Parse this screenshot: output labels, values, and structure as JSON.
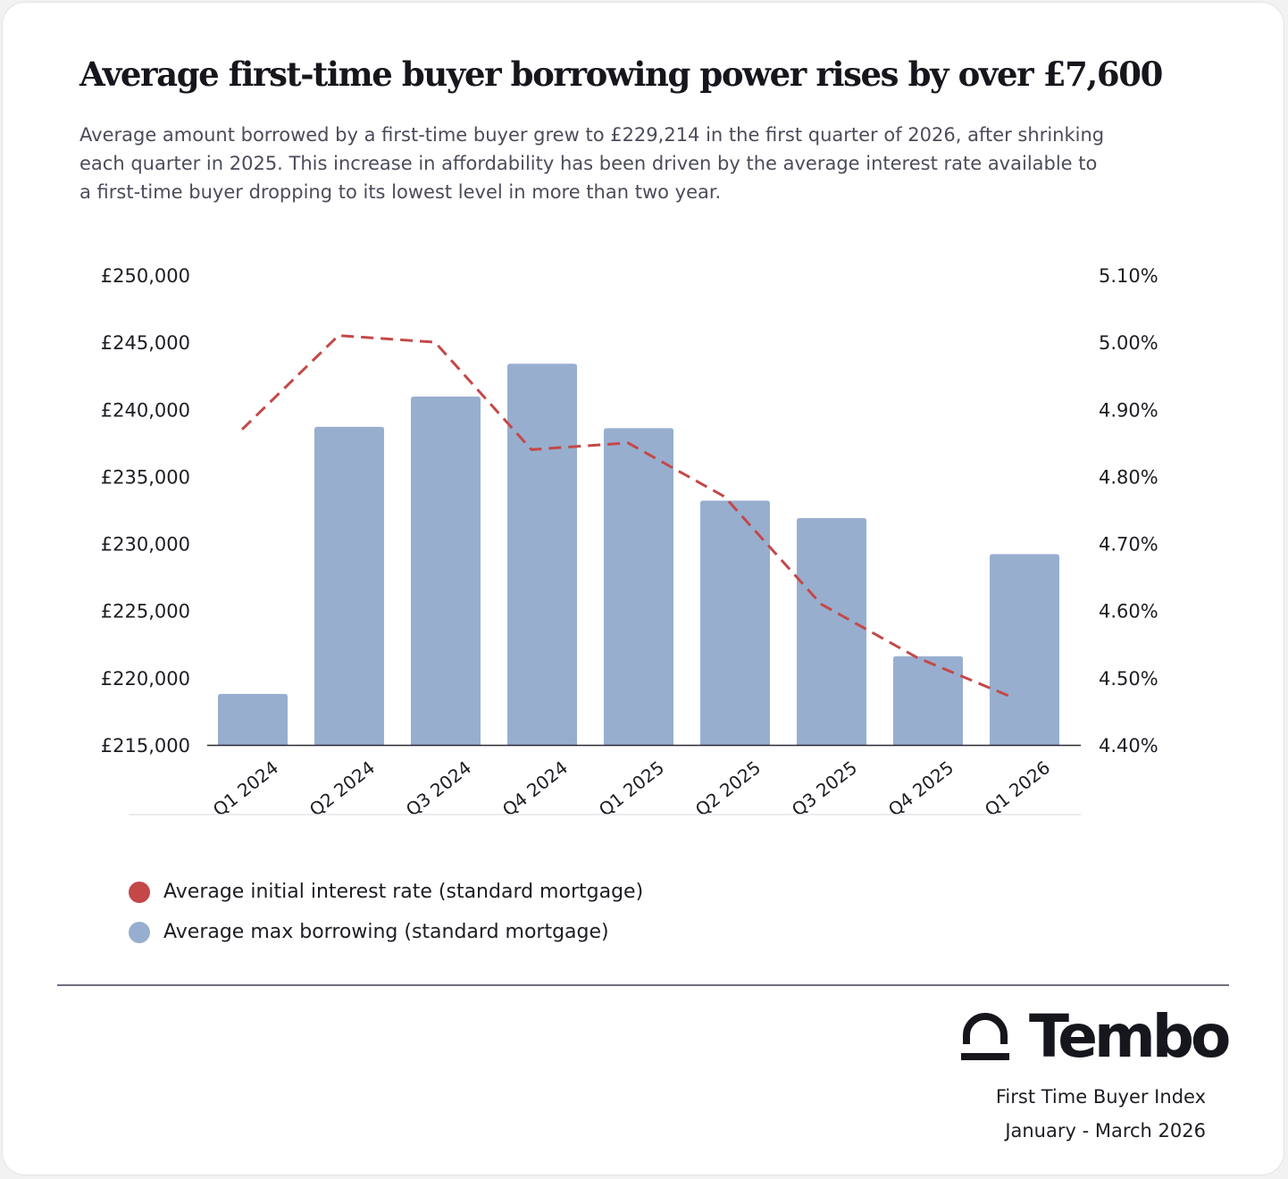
{
  "header": {
    "title": "Average first-time buyer borrowing power rises by over £7,600",
    "subtitle": "Average amount borrowed by a first-time buyer grew to £229,214 in the first quarter of 2026, after shrinking each quarter in 2025. This increase in affordability has been driven by the average interest rate available to a first-time buyer dropping to its lowest level in more than two year."
  },
  "chart_data": {
    "type": "bar",
    "categories": [
      "Q1 2024",
      "Q2 2024",
      "Q3 2024",
      "Q4 2024",
      "Q1 2025",
      "Q2 2025",
      "Q3 2025",
      "Q4 2025",
      "Q1 2026"
    ],
    "series": [
      {
        "name": "Average max borrowing (standard mortgage)",
        "type": "bar",
        "axis": "left",
        "values": [
          218800,
          238700,
          240950,
          243400,
          238600,
          233200,
          231900,
          221600,
          229214
        ],
        "color": "#98aecf"
      },
      {
        "name": "Average initial interest rate (standard mortgage)",
        "type": "line",
        "line_style": "dashed",
        "axis": "right",
        "values": [
          4.87,
          5.01,
          5.0,
          4.84,
          4.85,
          4.77,
          4.61,
          4.53,
          4.47
        ],
        "color": "#c44848"
      }
    ],
    "y_left": {
      "ticks": [
        215000,
        220000,
        225000,
        230000,
        235000,
        240000,
        245000,
        250000
      ],
      "tick_labels": [
        "£215,000",
        "£220,000",
        "£225,000",
        "£230,000",
        "£235,000",
        "£240,000",
        "£245,000",
        "£250,000"
      ],
      "range": [
        215000,
        250000
      ]
    },
    "y_right": {
      "ticks": [
        4.4,
        4.5,
        4.6,
        4.7,
        4.8,
        4.9,
        5.0,
        5.1
      ],
      "tick_labels": [
        "4.40%",
        "4.50%",
        "4.60%",
        "4.70%",
        "4.80%",
        "4.90%",
        "5.00%",
        "5.10%"
      ],
      "range": [
        4.4,
        5.1
      ]
    },
    "grid": false,
    "legend": {
      "placement": "bottom-left",
      "order": [
        1,
        0
      ]
    }
  },
  "footer": {
    "brand": "Tembo",
    "brand_icon": "tembo-logo-icon",
    "line1": "First Time Buyer Index",
    "line2": "January - March 2026"
  }
}
